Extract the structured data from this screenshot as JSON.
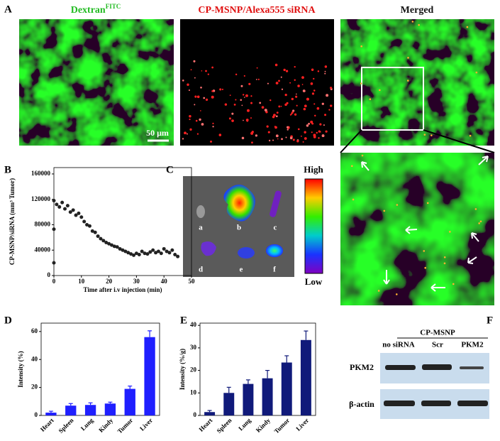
{
  "panel_labels": [
    "A",
    "B",
    "C",
    "D",
    "E",
    "F"
  ],
  "panel_a": {
    "titles": [
      {
        "text": "Dextran",
        "sup": "FITC"
      },
      {
        "text": "CP-MSNP/Alexa555 siRNA"
      },
      {
        "text": "Merged"
      }
    ],
    "scale_bar": "50 μm"
  },
  "panel_c": {
    "organ_labels": [
      "a",
      "b",
      "c",
      "d",
      "e",
      "f"
    ],
    "scale_high": "High",
    "scale_low": "Low"
  },
  "panel_f": {
    "group_label": "CP-MSNP",
    "lanes": [
      "no siRNA",
      "Scr",
      "PKM2"
    ],
    "rows": [
      "PKM2",
      "β-actin"
    ]
  },
  "chart_data": [
    {
      "type": "scatter",
      "x_label": "Time after i.v injection (min)",
      "y_label": "CP-MSNP/siRNA (mm³ Tumor)",
      "x": [
        0,
        0,
        0,
        1,
        2,
        3,
        4,
        5,
        6,
        7,
        8,
        9,
        10,
        11,
        12,
        13,
        14,
        15,
        16,
        17,
        18,
        19,
        20,
        21,
        22,
        23,
        24,
        25,
        26,
        27,
        28,
        29,
        30,
        31,
        32,
        33,
        34,
        35,
        36,
        37,
        38,
        39,
        40,
        41,
        42,
        43,
        44,
        45
      ],
      "values": [
        20000,
        73000,
        118000,
        112000,
        108000,
        115000,
        105000,
        110000,
        100000,
        103000,
        95000,
        98000,
        92000,
        85000,
        80000,
        78000,
        70000,
        68000,
        62000,
        58000,
        55000,
        52000,
        50000,
        48000,
        46000,
        45000,
        42000,
        40000,
        38000,
        36000,
        34000,
        32000,
        35000,
        33000,
        38000,
        35000,
        34000,
        37000,
        40000,
        36000,
        38000,
        35000,
        42000,
        38000,
        36000,
        40000,
        33000,
        30000
      ],
      "color": "#222222",
      "xlim": [
        0,
        50
      ],
      "ylim": [
        0,
        170000
      ],
      "xticks": [
        0,
        10,
        20,
        30,
        40,
        50
      ],
      "yticks": [
        0,
        40000,
        80000,
        120000,
        160000
      ]
    },
    {
      "type": "bar",
      "y_label": "Intensity (%)",
      "categories": [
        "Heart",
        "Spleen",
        "Lung",
        "Kindy",
        "Tumor",
        "Liver"
      ],
      "values": [
        2,
        7,
        7.5,
        8.5,
        19,
        56
      ],
      "errors": [
        1,
        1.5,
        1.5,
        1,
        2,
        4.5
      ],
      "color": "#1f1fff",
      "ylim": [
        0,
        66
      ],
      "yticks": [
        0,
        20,
        40,
        60
      ]
    },
    {
      "type": "bar",
      "y_label": "Intensity (%/g)",
      "categories": [
        "Heart",
        "Spleen",
        "Lung",
        "Kindy",
        "Tumor",
        "Liver"
      ],
      "values": [
        1.5,
        10,
        14,
        16.5,
        23.5,
        33.5
      ],
      "errors": [
        0.7,
        2.5,
        1.8,
        3.5,
        3,
        4
      ],
      "color": "#101a7a",
      "ylim": [
        0,
        41
      ],
      "yticks": [
        0,
        10,
        20,
        30,
        40
      ]
    }
  ]
}
